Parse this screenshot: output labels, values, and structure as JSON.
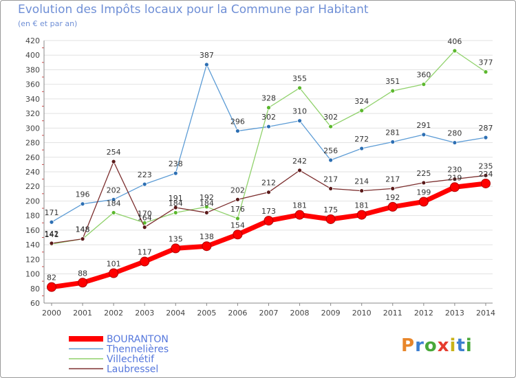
{
  "title": "Evolution des Impôts locaux pour la Commune par Habitant",
  "subtitle": "(en € et par an)",
  "logo_text": "Proxiti",
  "chart_data": {
    "type": "line",
    "title": "Evolution des Impôts locaux pour la Commune par Habitant",
    "subtitle": "(en € et par an)",
    "xlabel": "",
    "ylabel": "",
    "x": [
      "2000",
      "2001",
      "2002",
      "2003",
      "2004",
      "2005",
      "2006",
      "2007",
      "2008",
      "2009",
      "2010",
      "2011",
      "2012",
      "2013",
      "2014"
    ],
    "ylim": [
      60,
      420
    ],
    "ytick_step": 20,
    "grid": "horizontal",
    "legend_position": "bottom-left",
    "series": [
      {
        "name": "BOURANTON",
        "color": "#ff0000",
        "values": [
          82,
          88,
          101,
          117,
          135,
          138,
          154,
          173,
          181,
          175,
          181,
          192,
          199,
          219,
          224
        ]
      },
      {
        "name": "Thennelières",
        "color": "#5b9bd5",
        "values": [
          171,
          196,
          202,
          223,
          238,
          387,
          296,
          302,
          310,
          256,
          272,
          281,
          291,
          280,
          287
        ]
      },
      {
        "name": "Villechétif",
        "color": "#8fd16a",
        "values": [
          141,
          148,
          184,
          170,
          184,
          192,
          176,
          328,
          355,
          302,
          324,
          351,
          360,
          406,
          377
        ]
      },
      {
        "name": "Laubressel",
        "color": "#7b2d2d",
        "values": [
          142,
          148,
          254,
          164,
          191,
          184,
          202,
          212,
          242,
          217,
          214,
          217,
          225,
          230,
          235
        ]
      }
    ]
  }
}
